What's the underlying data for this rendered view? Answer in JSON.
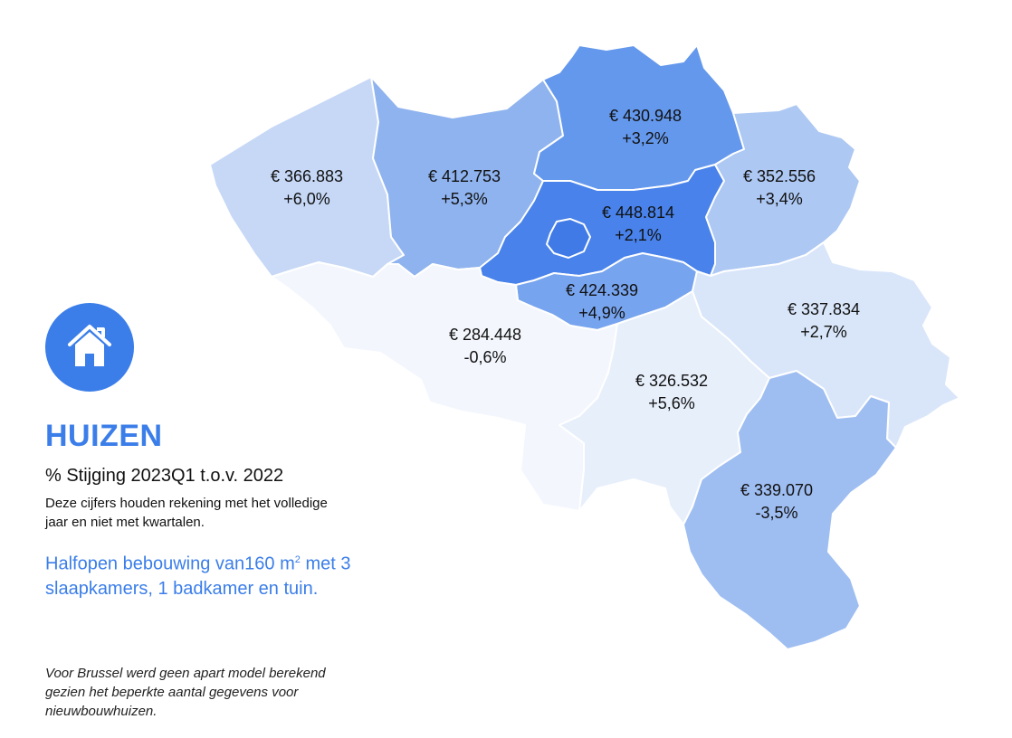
{
  "legend": {
    "title": "HUIZEN",
    "subtitle": "% Stijging 2023Q1 t.o.v. 2022",
    "note": "Deze cijfers houden rekening met het volledige jaar en niet met kwartalen.",
    "description_pre": "Halfopen bebouwing van160 m",
    "description_sup": "2",
    "description_post": "met 3 slaapkamers, 1 badkamer en tuin.",
    "footnote": "Voor Brussel werd geen apart model berekend gezien het beperkte aantal gegevens voor nieuwbouwhuizen.",
    "icon": "house-icon",
    "accent_color": "#3b7ee9"
  },
  "regions": [
    {
      "id": "west-vlaanderen",
      "price": "€ 366.883",
      "change": "+6,0%",
      "color": "#c6d8f6"
    },
    {
      "id": "oost-vlaanderen",
      "price": "€ 412.753",
      "change": "+5,3%",
      "color": "#8fb3ee"
    },
    {
      "id": "antwerpen",
      "price": "€ 430.948",
      "change": "+3,2%",
      "color": "#6498ec"
    },
    {
      "id": "vlaams-brabant",
      "price": "€ 448.814",
      "change": "+2,1%",
      "color": "#4882ea"
    },
    {
      "id": "limburg",
      "price": "€ 352.556",
      "change": "+3,4%",
      "color": "#adc8f3"
    },
    {
      "id": "waals-brabant",
      "price": "€ 424.339",
      "change": "+4,9%",
      "color": "#77a4ee"
    },
    {
      "id": "henegouwen",
      "price": "€ 284.448",
      "change": "-0,6%",
      "color": "#f3f7fd"
    },
    {
      "id": "namen",
      "price": "€ 326.532",
      "change": "+5,6%",
      "color": "#e7effb"
    },
    {
      "id": "luik",
      "price": "€ 337.834",
      "change": "+2,7%",
      "color": "#d9e6fa"
    },
    {
      "id": "luxemburg",
      "price": "€ 339.070",
      "change": "-3,5%",
      "color": "#9ebdf1"
    }
  ],
  "brussels_color": "#3f7ae6"
}
